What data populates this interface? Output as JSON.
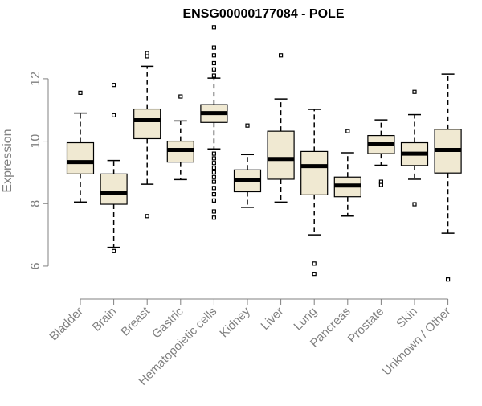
{
  "chart_data": {
    "type": "boxplot",
    "title": "ENSG00000177084 - POLE",
    "xlabel": "",
    "ylabel": "Expression",
    "ylim": [
      5.2,
      13.8
    ],
    "yticks": [
      6,
      8,
      10,
      12
    ],
    "grid": false,
    "colors": {
      "box_fill": "#f0e9d2",
      "line": "#000000",
      "axis": "#808080",
      "tick_text": "#808080",
      "title": "#000000"
    },
    "categories": [
      "Bladder",
      "Brain",
      "Breast",
      "Gastric",
      "Hematopoietic cells",
      "Kidney",
      "Liver",
      "Lung",
      "Pancreas",
      "Prostate",
      "Skin",
      "Unknown / Other"
    ],
    "boxes": [
      {
        "name": "Bladder",
        "whisker_low": 8.05,
        "q1": 8.95,
        "median": 9.33,
        "q3": 9.95,
        "whisker_high": 10.9,
        "outliers": [
          11.55
        ]
      },
      {
        "name": "Brain",
        "whisker_low": 6.6,
        "q1": 7.98,
        "median": 8.35,
        "q3": 8.95,
        "whisker_high": 9.38,
        "outliers": [
          6.48,
          10.83,
          11.8
        ]
      },
      {
        "name": "Breast",
        "whisker_low": 8.62,
        "q1": 10.08,
        "median": 10.67,
        "q3": 11.03,
        "whisker_high": 12.4,
        "outliers": [
          7.6,
          12.72,
          12.82
        ]
      },
      {
        "name": "Gastric",
        "whisker_low": 8.77,
        "q1": 9.33,
        "median": 9.72,
        "q3": 10.0,
        "whisker_high": 10.65,
        "outliers": [
          11.43
        ]
      },
      {
        "name": "Hematopoietic cells",
        "whisker_low": 9.75,
        "q1": 10.6,
        "median": 10.9,
        "q3": 11.17,
        "whisker_high": 12.02,
        "outliers": [
          7.55,
          7.75,
          8.1,
          8.3,
          8.5,
          8.7,
          8.85,
          9.0,
          9.15,
          9.3,
          9.45,
          9.6,
          12.1,
          12.3,
          12.5,
          12.75,
          13.0,
          13.65
        ]
      },
      {
        "name": "Kidney",
        "whisker_low": 7.88,
        "q1": 8.38,
        "median": 8.75,
        "q3": 9.08,
        "whisker_high": 9.57,
        "outliers": [
          10.5
        ]
      },
      {
        "name": "Liver",
        "whisker_low": 8.05,
        "q1": 8.78,
        "median": 9.43,
        "q3": 10.32,
        "whisker_high": 11.35,
        "outliers": [
          12.75
        ]
      },
      {
        "name": "Lung",
        "whisker_low": 7.0,
        "q1": 8.28,
        "median": 9.2,
        "q3": 9.67,
        "whisker_high": 11.02,
        "outliers": [
          5.75,
          6.08
        ]
      },
      {
        "name": "Pancreas",
        "whisker_low": 7.6,
        "q1": 8.22,
        "median": 8.58,
        "q3": 8.85,
        "whisker_high": 9.63,
        "outliers": [
          10.32
        ]
      },
      {
        "name": "Prostate",
        "whisker_low": 9.23,
        "q1": 9.6,
        "median": 9.9,
        "q3": 10.18,
        "whisker_high": 10.68,
        "outliers": [
          8.6,
          8.7
        ]
      },
      {
        "name": "Skin",
        "whisker_low": 8.78,
        "q1": 9.22,
        "median": 9.6,
        "q3": 9.95,
        "whisker_high": 10.85,
        "outliers": [
          7.98,
          11.58
        ]
      },
      {
        "name": "Unknown / Other",
        "whisker_low": 7.05,
        "q1": 8.98,
        "median": 9.72,
        "q3": 10.38,
        "whisker_high": 12.15,
        "outliers": [
          5.57
        ]
      }
    ]
  }
}
